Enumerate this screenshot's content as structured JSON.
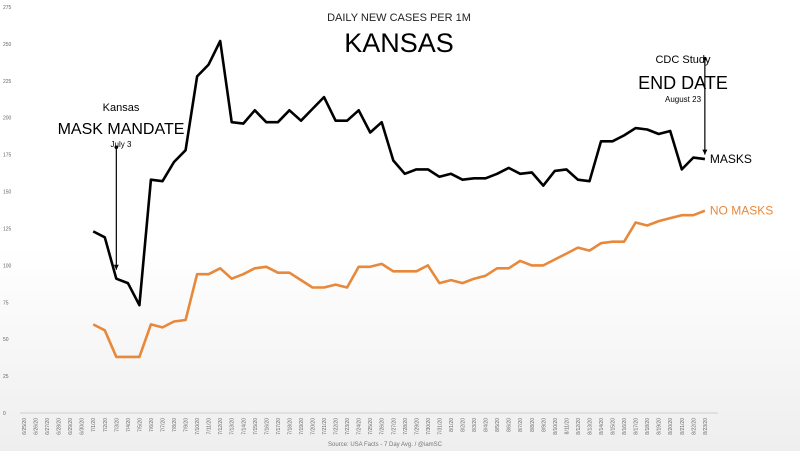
{
  "chart_data": {
    "type": "line",
    "title": "DAILY NEW CASES PER 1M",
    "subtitle": "KANSAS",
    "source": "Source: USA Facts - 7 Day Avg. / @iamSC",
    "ylim": [
      0,
      275
    ],
    "yticks": [
      0,
      25,
      50,
      75,
      100,
      125,
      150,
      175,
      200,
      225,
      250,
      275
    ],
    "grid": false,
    "x": [
      "6/25/20",
      "6/26/20",
      "6/27/20",
      "6/28/20",
      "6/29/20",
      "6/30/20",
      "7/1/20",
      "7/2/20",
      "7/3/20",
      "7/4/20",
      "7/5/20",
      "7/6/20",
      "7/7/20",
      "7/8/20",
      "7/9/20",
      "7/10/20",
      "7/11/20",
      "7/12/20",
      "7/13/20",
      "7/14/20",
      "7/15/20",
      "7/16/20",
      "7/17/20",
      "7/18/20",
      "7/19/20",
      "7/20/20",
      "7/21/20",
      "7/22/20",
      "7/23/20",
      "7/24/20",
      "7/25/20",
      "7/26/20",
      "7/27/20",
      "7/28/20",
      "7/29/20",
      "7/30/20",
      "7/31/20",
      "8/1/20",
      "8/2/20",
      "8/3/20",
      "8/4/20",
      "8/5/20",
      "8/6/20",
      "8/7/20",
      "8/8/20",
      "8/9/20",
      "8/10/20",
      "8/11/20",
      "8/12/20",
      "8/13/20",
      "8/14/20",
      "8/15/20",
      "8/16/20",
      "8/17/20",
      "8/18/20",
      "8/19/20",
      "8/20/20",
      "8/21/20",
      "8/22/20",
      "8/23/20"
    ],
    "series": [
      {
        "name": "MASKS",
        "color": "#000000",
        "values": [
          null,
          null,
          null,
          null,
          null,
          null,
          123,
          119,
          91,
          88,
          73,
          158,
          157,
          170,
          178,
          228,
          236,
          252,
          197,
          196,
          205,
          197,
          197,
          205,
          198,
          206,
          214,
          198,
          198,
          205,
          190,
          197,
          171,
          162,
          165,
          165,
          160,
          162,
          158,
          159,
          159,
          162,
          166,
          162,
          163,
          154,
          164,
          165,
          158,
          157,
          184,
          184,
          188,
          193,
          192,
          189,
          191,
          165,
          173,
          172
        ]
      },
      {
        "name": "NO MASKS",
        "color": "#e8883a",
        "values": [
          null,
          null,
          null,
          null,
          null,
          null,
          60,
          56,
          38,
          38,
          38,
          60,
          58,
          62,
          63,
          94,
          94,
          98,
          91,
          94,
          98,
          99,
          95,
          95,
          90,
          85,
          85,
          87,
          85,
          99,
          99,
          101,
          96,
          96,
          96,
          100,
          88,
          90,
          88,
          91,
          93,
          98,
          98,
          103,
          100,
          100,
          104,
          108,
          112,
          110,
          115,
          116,
          116,
          129,
          127,
          130,
          132,
          134,
          134,
          137
        ]
      }
    ],
    "annotations": {
      "mandate": {
        "line1": "Kansas",
        "line2": "MASK MANDATE",
        "line3": "July 3",
        "x": "7/3/20",
        "from": 180,
        "to": 97
      },
      "cdc": {
        "line1": "CDC Study",
        "line2": "END DATE",
        "line3": "August 23",
        "x": "8/23/20",
        "from": 240,
        "to": 175
      }
    }
  }
}
